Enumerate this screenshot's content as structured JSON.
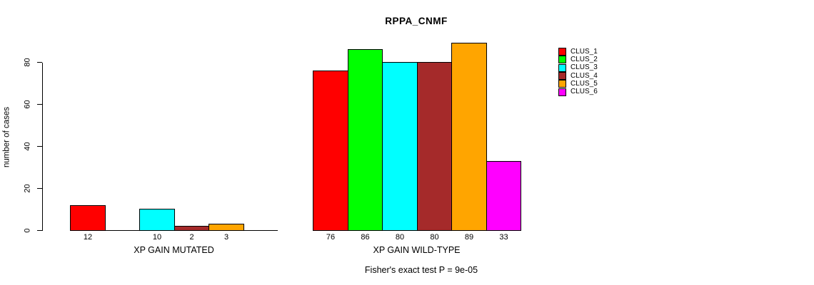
{
  "chart_data": {
    "type": "bar",
    "title": "RPPA_CNMF",
    "ylabel": "number of cases",
    "yticks": [
      0,
      20,
      40,
      60,
      80
    ],
    "ylim": [
      0,
      89
    ],
    "grid": false,
    "legend_position": "right",
    "categories": [
      "CLUS_1",
      "CLUS_2",
      "CLUS_3",
      "CLUS_4",
      "CLUS_5",
      "CLUS_6"
    ],
    "series_colors": [
      "#FF0000",
      "#00FF00",
      "#00FFFF",
      "#A52A2A",
      "#FFA500",
      "#FF00FF"
    ],
    "groups": [
      {
        "label": "XP GAIN MUTATED",
        "values": [
          12,
          0,
          10,
          2,
          3,
          0
        ]
      },
      {
        "label": "XP GAIN WILD-TYPE",
        "values": [
          76,
          86,
          80,
          80,
          89,
          33
        ]
      }
    ],
    "annotation": "Fisher's exact test P = 9e-05",
    "axis_color": "#000000",
    "background": "#FFFFFF"
  }
}
